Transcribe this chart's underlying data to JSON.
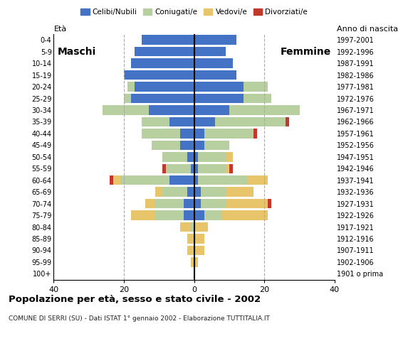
{
  "age_groups": [
    "100+",
    "95-99",
    "90-94",
    "85-89",
    "80-84",
    "75-79",
    "70-74",
    "65-69",
    "60-64",
    "55-59",
    "50-54",
    "45-49",
    "40-44",
    "35-39",
    "30-34",
    "25-29",
    "20-24",
    "15-19",
    "10-14",
    "5-9",
    "0-4"
  ],
  "birth_years": [
    "1901 o prima",
    "1902-1906",
    "1907-1911",
    "1912-1916",
    "1917-1921",
    "1922-1926",
    "1927-1931",
    "1932-1936",
    "1937-1941",
    "1942-1946",
    "1947-1951",
    "1952-1956",
    "1957-1961",
    "1962-1966",
    "1967-1971",
    "1972-1976",
    "1977-1981",
    "1982-1986",
    "1987-1991",
    "1992-1996",
    "1997-2001"
  ],
  "male": {
    "celibi": [
      0,
      0,
      0,
      0,
      0,
      3,
      3,
      2,
      7,
      1,
      2,
      4,
      4,
      7,
      13,
      18,
      17,
      20,
      18,
      17,
      15
    ],
    "coniugati": [
      0,
      0,
      0,
      0,
      1,
      8,
      8,
      7,
      14,
      7,
      7,
      8,
      11,
      8,
      13,
      2,
      2,
      0,
      0,
      0,
      0
    ],
    "vedovi": [
      0,
      1,
      2,
      2,
      3,
      7,
      3,
      2,
      2,
      0,
      0,
      0,
      0,
      0,
      0,
      0,
      0,
      0,
      0,
      0,
      0
    ],
    "divorziati": [
      0,
      0,
      0,
      0,
      0,
      0,
      0,
      0,
      1,
      1,
      0,
      0,
      0,
      0,
      0,
      0,
      0,
      0,
      0,
      0,
      0
    ]
  },
  "female": {
    "nubili": [
      0,
      0,
      0,
      0,
      0,
      3,
      2,
      2,
      1,
      1,
      1,
      3,
      3,
      6,
      10,
      14,
      14,
      12,
      11,
      9,
      12
    ],
    "coniugate": [
      0,
      0,
      0,
      0,
      0,
      5,
      7,
      7,
      14,
      8,
      8,
      7,
      14,
      20,
      20,
      8,
      7,
      0,
      0,
      0,
      0
    ],
    "vedove": [
      0,
      1,
      3,
      3,
      4,
      13,
      12,
      8,
      6,
      1,
      2,
      0,
      0,
      0,
      0,
      0,
      0,
      0,
      0,
      0,
      0
    ],
    "divorziate": [
      0,
      0,
      0,
      0,
      0,
      0,
      1,
      0,
      0,
      1,
      0,
      0,
      1,
      1,
      0,
      0,
      0,
      0,
      0,
      0,
      0
    ]
  },
  "colors": {
    "celibi": "#4472c4",
    "coniugati": "#b8cfa0",
    "vedovi": "#e8c46a",
    "divorziati": "#c0392b"
  },
  "xlim": 40,
  "title": "Popolazione per età, sesso e stato civile - 2002",
  "subtitle": "COMUNE DI SERRI (SU) - Dati ISTAT 1° gennaio 2002 - Elaborazione TUTTITALIA.IT",
  "ylabel_left": "Età",
  "ylabel_right": "Anno di nascita",
  "xlabel_left": "Maschi",
  "xlabel_right": "Femmine",
  "legend_labels": [
    "Celibi/Nubili",
    "Coniugati/e",
    "Vedovi/e",
    "Divorziati/e"
  ],
  "legend_colors": [
    "#4472c4",
    "#b8cfa0",
    "#e8c46a",
    "#c0392b"
  ]
}
